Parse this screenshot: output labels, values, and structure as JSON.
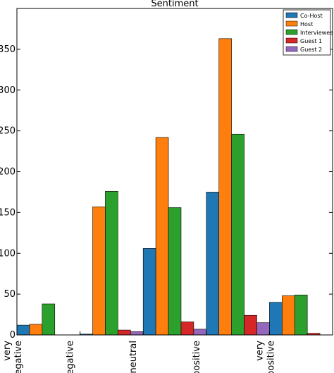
{
  "chart_data": {
    "type": "bar",
    "title": "Sentiment",
    "xlabel": "",
    "ylabel": "",
    "ylim": [
      0,
      400
    ],
    "yticks": [
      0,
      50,
      100,
      150,
      200,
      250,
      300,
      350
    ],
    "categories": [
      [
        "very",
        "negative"
      ],
      [
        "negative"
      ],
      [
        "neutral"
      ],
      [
        "positive"
      ],
      [
        "very",
        "positive"
      ]
    ],
    "legend_position": "top-right",
    "grid": false,
    "series": [
      {
        "name": "Co-Host",
        "color": "#1f77b4",
        "values": [
          12,
          1,
          106,
          175,
          40
        ]
      },
      {
        "name": "Host",
        "color": "#ff7f0e",
        "values": [
          13,
          157,
          242,
          363,
          48
        ]
      },
      {
        "name": "Interviewee",
        "color": "#2ca02c",
        "values": [
          38,
          176,
          156,
          246,
          49
        ]
      },
      {
        "name": "Guest 1",
        "color": "#d62728",
        "values": [
          0,
          6,
          16,
          24,
          2
        ]
      },
      {
        "name": "Guest 2",
        "color": "#9467bd",
        "values": [
          0,
          4,
          7,
          15,
          0
        ]
      }
    ]
  }
}
